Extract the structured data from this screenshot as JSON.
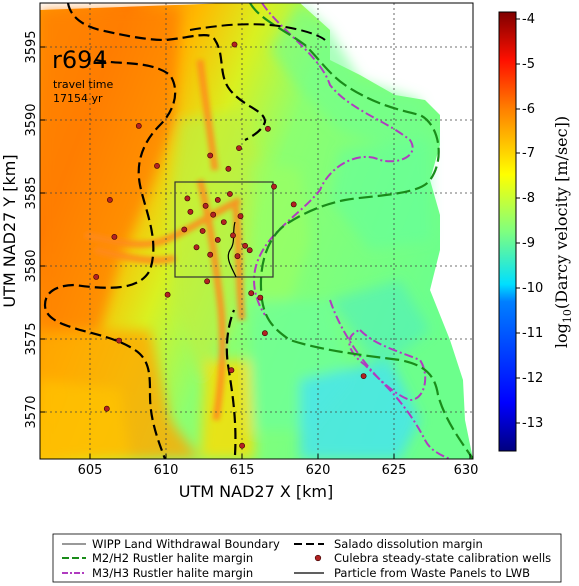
{
  "map": {
    "run_label": "r694",
    "travel_time_label": "travel time",
    "travel_time_value": "17154 yr",
    "xlabel": "UTM NAD27 X [km]",
    "ylabel": "UTM NAD27 Y [km]",
    "x_ticks": [
      "605",
      "610",
      "615",
      "620",
      "625",
      "630"
    ],
    "y_ticks": [
      "3595",
      "3590",
      "3585",
      "3580",
      "3575",
      "3570"
    ],
    "x_range": [
      601.5,
      630
    ],
    "y_range": [
      3566.5,
      3597.3
    ]
  },
  "colorbar": {
    "title": "log10(Darcy velocity [m/sec])",
    "title_log": "log",
    "title_sub": "10",
    "title_rest": "(Darcy velocity [m/sec])",
    "ticks": [
      "-4",
      "-5",
      "-6",
      "-7",
      "-8",
      "-9",
      "-10",
      "-11",
      "-12",
      "-13"
    ],
    "range": [
      -13.6,
      -3.8
    ],
    "colors": [
      "#00007f",
      "#0000ff",
      "#007fff",
      "#00ffff",
      "#7fff7f",
      "#ffff00",
      "#ff7f00",
      "#ff0000",
      "#7f0000"
    ]
  },
  "legend": {
    "items": [
      {
        "label": "WIPP Land Withdrawal Boundary",
        "style": "thin-solid",
        "color": "#333333"
      },
      {
        "label": "Salado dissolution margin",
        "style": "black-dashed",
        "color": "#000000"
      },
      {
        "label": "M2/H2 Rustler halite margin",
        "style": "green-dashed",
        "color": "#1a8c1a"
      },
      {
        "label": "Culebra steady-state calibration wells",
        "style": "dot",
        "color": "#b22222"
      },
      {
        "label": "M3/H3 Rustler halite margin",
        "style": "purple-dashdot",
        "color": "#b03cc0"
      },
      {
        "label": "Particle from Waste Panels to LWB",
        "style": "thin-solid",
        "color": "#000000"
      }
    ]
  },
  "wells": [
    [
      614.3,
      3594.5
    ],
    [
      608.0,
      3589.0
    ],
    [
      616.5,
      3588.8
    ],
    [
      609.2,
      3586.3
    ],
    [
      612.7,
      3587.0
    ],
    [
      613.9,
      3586.1
    ],
    [
      614.6,
      3587.5
    ],
    [
      616.9,
      3584.9
    ],
    [
      606.1,
      3584.0
    ],
    [
      611.2,
      3584.1
    ],
    [
      611.4,
      3583.2
    ],
    [
      612.4,
      3583.6
    ],
    [
      613.2,
      3584.0
    ],
    [
      614.0,
      3584.4
    ],
    [
      612.9,
      3583.0
    ],
    [
      613.6,
      3582.5
    ],
    [
      614.7,
      3582.9
    ],
    [
      612.2,
      3581.9
    ],
    [
      613.2,
      3581.3
    ],
    [
      614.2,
      3581.6
    ],
    [
      615.0,
      3580.9
    ],
    [
      611.8,
      3580.8
    ],
    [
      612.7,
      3580.3
    ],
    [
      614.5,
      3580.2
    ],
    [
      615.3,
      3580.6
    ],
    [
      611.0,
      3582.0
    ],
    [
      606.4,
      3581.5
    ],
    [
      618.2,
      3583.7
    ],
    [
      609.9,
      3577.6
    ],
    [
      612.5,
      3578.5
    ],
    [
      615.4,
      3577.7
    ],
    [
      616.0,
      3577.4
    ],
    [
      605.2,
      3578.8
    ],
    [
      606.7,
      3574.5
    ],
    [
      616.3,
      3575.0
    ],
    [
      614.1,
      3572.5
    ],
    [
      622.8,
      3572.1
    ],
    [
      605.9,
      3569.9
    ],
    [
      614.8,
      3567.4
    ]
  ]
}
